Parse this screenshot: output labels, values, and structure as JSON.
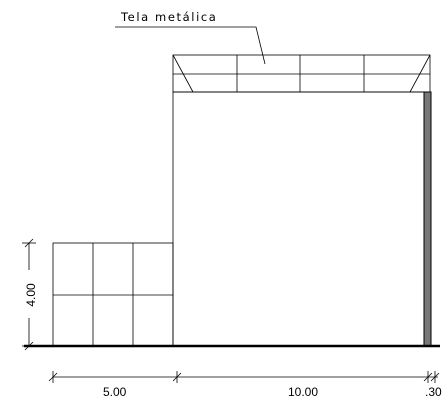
{
  "annotation": {
    "label": "Tela metálica"
  },
  "dimensions": {
    "height_left": "4.00",
    "bottom": [
      "5.00",
      "10.00",
      ".30"
    ]
  },
  "colors": {
    "line": "#000000",
    "wall_fill": "#777777"
  }
}
